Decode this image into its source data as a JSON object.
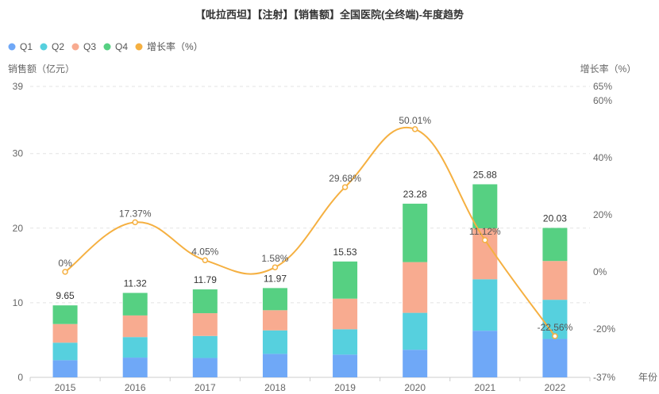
{
  "chart_data": {
    "type": "bar",
    "title": "【吡拉西坦】【注射】【销售额】全国医院(全终端)-年度趋势",
    "categories": [
      "2015",
      "2016",
      "2017",
      "2018",
      "2019",
      "2020",
      "2021",
      "2022"
    ],
    "series": [
      {
        "name": "Q1",
        "color": "#6fa8f7",
        "values": [
          2.3,
          2.65,
          2.6,
          3.15,
          3.05,
          3.7,
          6.25,
          5.15
        ]
      },
      {
        "name": "Q2",
        "color": "#56d0de",
        "values": [
          2.35,
          2.75,
          2.95,
          3.15,
          3.4,
          4.95,
          6.9,
          5.25
        ]
      },
      {
        "name": "Q3",
        "color": "#f8ab90",
        "values": [
          2.5,
          2.9,
          3.05,
          2.7,
          4.1,
          6.8,
          6.83,
          5.2
        ]
      },
      {
        "name": "Q4",
        "color": "#56d082",
        "values": [
          2.5,
          3.02,
          3.19,
          2.97,
          4.98,
          7.83,
          5.9,
          4.43
        ]
      }
    ],
    "totals": [
      9.65,
      11.32,
      11.79,
      11.97,
      15.53,
      23.28,
      25.88,
      20.03
    ],
    "total_labels": [
      "9.65",
      "11.32",
      "11.79",
      "11.97",
      "15.53",
      "23.28",
      "25.88",
      "20.03"
    ],
    "growth": {
      "name": "增长率（%）",
      "color": "#f5b041",
      "values": [
        0,
        17.37,
        4.05,
        1.58,
        29.68,
        50.01,
        11.12,
        -22.56
      ],
      "labels": [
        "0%",
        "17.37%",
        "4.05%",
        "1.58%",
        "29.68%",
        "50.01%",
        "11.12%",
        "-22.56%"
      ]
    },
    "y_left": {
      "label": "销售额（亿元）",
      "min": 0,
      "max": 39,
      "ticks": [
        "0",
        "10",
        "20",
        "30",
        "39"
      ]
    },
    "y_right": {
      "label": "增长率（%）",
      "min": -37,
      "max": 65,
      "ticks": [
        "-37%",
        "-20%",
        "0%",
        "20%",
        "40%",
        "60%",
        "65%"
      ]
    },
    "xlabel": "年份",
    "legend": [
      "Q1",
      "Q2",
      "Q3",
      "Q4",
      "增长率（%）"
    ]
  }
}
